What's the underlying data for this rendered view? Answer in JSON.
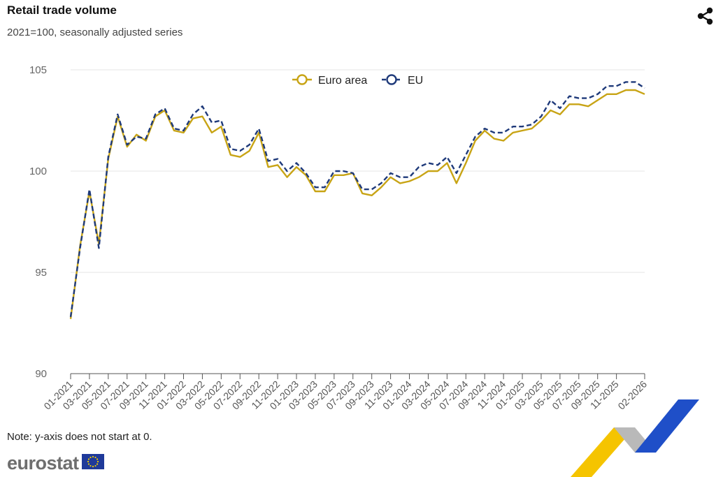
{
  "header": {
    "title": "Retail trade volume",
    "subtitle": "2021=100, seasonally adjusted series",
    "share_icon": "share-icon"
  },
  "footer": {
    "note": "Note: y-axis does not start at 0.",
    "logo_text": "eurostat",
    "logo_flag_icon": "eu-flag-icon"
  },
  "colors": {
    "euro_area": "#c8a415",
    "eu": "#1f3a7a",
    "grid": "#e6e6e6",
    "axis": "#555555",
    "deco_yellow": "#f5c400",
    "deco_blue": "#1f4fc8",
    "deco_grey": "#a8a8a8"
  },
  "chart_data": {
    "type": "line",
    "ylim": [
      90,
      105
    ],
    "yticks": [
      90,
      95,
      100,
      105
    ],
    "grid": true,
    "legend_position": "top-center",
    "x": [
      "01-2021",
      "02-2021",
      "03-2021",
      "04-2021",
      "05-2021",
      "06-2021",
      "07-2021",
      "08-2021",
      "09-2021",
      "10-2021",
      "11-2021",
      "12-2021",
      "01-2022",
      "02-2022",
      "03-2022",
      "04-2022",
      "05-2022",
      "06-2022",
      "07-2022",
      "08-2022",
      "09-2022",
      "10-2022",
      "11-2022",
      "12-2022",
      "01-2023",
      "02-2023",
      "03-2023",
      "04-2023",
      "05-2023",
      "06-2023",
      "07-2023",
      "08-2023",
      "09-2023",
      "10-2023",
      "11-2023",
      "12-2023",
      "01-2024",
      "02-2024",
      "03-2024",
      "04-2024",
      "05-2024",
      "06-2024",
      "07-2024",
      "08-2024",
      "09-2024",
      "10-2024",
      "11-2024",
      "12-2024",
      "01-2025",
      "02-2025",
      "03-2025",
      "04-2025",
      "05-2025",
      "06-2025",
      "07-2025",
      "08-2025",
      "09-2025",
      "10-2025",
      "11-2025",
      "12-2025",
      "01-2026",
      "02-2026"
    ],
    "xtick_labels": [
      "01-2021",
      "03-2021",
      "05-2021",
      "07-2021",
      "09-2021",
      "11-2021",
      "01-2022",
      "03-2022",
      "05-2022",
      "07-2022",
      "09-2022",
      "11-2022",
      "01-2023",
      "03-2023",
      "05-2023",
      "07-2023",
      "09-2023",
      "11-2023",
      "01-2024",
      "03-2024",
      "05-2024",
      "07-2024",
      "09-2024",
      "11-2024",
      "01-2025",
      "03-2025",
      "05-2025",
      "07-2025",
      "09-2025",
      "11-2025",
      "02-2026"
    ],
    "series": [
      {
        "name": "Euro area",
        "style": "solid",
        "values": [
          92.7,
          96.3,
          99.0,
          96.4,
          100.6,
          102.7,
          101.2,
          101.8,
          101.5,
          102.7,
          103.0,
          102.0,
          101.9,
          102.6,
          102.7,
          101.9,
          102.2,
          100.8,
          100.7,
          101.0,
          101.9,
          100.2,
          100.3,
          99.7,
          100.2,
          99.8,
          99.0,
          99.0,
          99.8,
          99.8,
          99.9,
          98.9,
          98.8,
          99.2,
          99.7,
          99.4,
          99.5,
          99.7,
          100.0,
          100.0,
          100.4,
          99.4,
          100.4,
          101.5,
          102.0,
          101.6,
          101.5,
          101.9,
          102.0,
          102.1,
          102.5,
          103.0,
          102.8,
          103.3,
          103.3,
          103.2,
          103.5,
          103.8,
          103.8,
          104.0,
          104.0,
          103.8
        ]
      },
      {
        "name": "EU",
        "style": "dashed",
        "values": [
          92.8,
          96.2,
          99.1,
          96.2,
          100.7,
          102.8,
          101.3,
          101.7,
          101.6,
          102.8,
          103.1,
          102.1,
          102.0,
          102.8,
          103.2,
          102.4,
          102.5,
          101.1,
          101.0,
          101.3,
          102.1,
          100.5,
          100.6,
          100.0,
          100.4,
          99.9,
          99.2,
          99.2,
          100.0,
          100.0,
          99.9,
          99.1,
          99.1,
          99.4,
          99.9,
          99.7,
          99.7,
          100.2,
          100.4,
          100.3,
          100.7,
          99.9,
          100.8,
          101.7,
          102.1,
          101.9,
          101.9,
          102.2,
          102.2,
          102.3,
          102.7,
          103.5,
          103.1,
          103.7,
          103.6,
          103.6,
          103.8,
          104.2,
          104.2,
          104.4,
          104.4,
          104.1
        ]
      }
    ]
  }
}
